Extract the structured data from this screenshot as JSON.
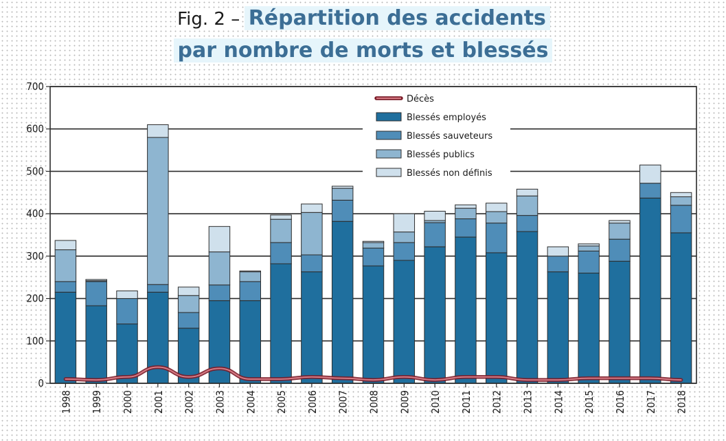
{
  "title": {
    "prefix": "Fig. 2 –",
    "main_line1": "Répartition des accidents",
    "main_line2": "par nombre de morts et blessés"
  },
  "chart_data": {
    "type": "bar",
    "stacked": true,
    "categories": [
      "1998",
      "1999",
      "2000",
      "2001",
      "2002",
      "2003",
      "2004",
      "2005",
      "2006",
      "2007",
      "2008",
      "2009",
      "2010",
      "2011",
      "2012",
      "2013",
      "2014",
      "2015",
      "2016",
      "2017",
      "2018"
    ],
    "ylim": [
      0,
      700
    ],
    "yticks": [
      0,
      100,
      200,
      300,
      400,
      500,
      600,
      700
    ],
    "grid": true,
    "legend_position": "top-center",
    "series": [
      {
        "name": "Blessés employés",
        "color": "#1f6f9e",
        "values": [
          215,
          183,
          140,
          215,
          130,
          195,
          195,
          282,
          263,
          382,
          277,
          290,
          322,
          345,
          308,
          358,
          263,
          260,
          288,
          437,
          355
        ]
      },
      {
        "name": "Blessés sauveteurs",
        "color": "#4f8db8",
        "values": [
          25,
          57,
          60,
          18,
          37,
          37,
          45,
          50,
          40,
          50,
          42,
          42,
          57,
          43,
          70,
          38,
          37,
          52,
          52,
          35,
          65
        ]
      },
      {
        "name": "Blessés publics",
        "color": "#8eb5d0",
        "values": [
          75,
          2,
          0,
          347,
          40,
          78,
          23,
          55,
          100,
          28,
          13,
          25,
          5,
          25,
          27,
          46,
          0,
          12,
          38,
          0,
          20
        ]
      },
      {
        "name": "Blessés non définis",
        "color": "#cfe0ec",
        "values": [
          22,
          3,
          18,
          30,
          20,
          60,
          2,
          10,
          20,
          5,
          3,
          43,
          22,
          8,
          20,
          16,
          22,
          5,
          6,
          43,
          10
        ]
      }
    ],
    "line_series": {
      "name": "Décès",
      "color": "#9c2a37",
      "values": [
        10,
        8,
        15,
        38,
        15,
        35,
        10,
        10,
        15,
        12,
        8,
        15,
        8,
        15,
        15,
        8,
        8,
        12,
        12,
        12,
        8
      ]
    }
  }
}
